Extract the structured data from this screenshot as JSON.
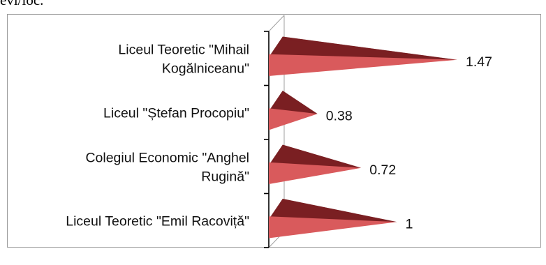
{
  "top_fragment": "evi/loc.",
  "colors": {
    "front": "#d95a5c",
    "top": "#7a1f22",
    "axis": "#000000",
    "wall": "#a0a0a0",
    "frame": "#9a9a9a"
  },
  "chart_data": {
    "type": "bar",
    "orientation": "horizontal",
    "style": "3d-pyramid",
    "categories": [
      [
        "Liceul Teoretic \"Mihail",
        "Kogălniceanu\""
      ],
      [
        "Liceul \"Ștefan Procopiu\""
      ],
      [
        "Colegiul Economic \"Anghel",
        "Rugină\""
      ],
      [
        "Liceul Teoretic \"Emil Racoviță\""
      ]
    ],
    "values": [
      1.47,
      0.38,
      0.72,
      1
    ],
    "value_labels": [
      "1.47",
      "0.38",
      "0.72",
      "1"
    ],
    "title": "",
    "xlabel": "",
    "ylabel": "",
    "grid": false,
    "legend": "none"
  }
}
